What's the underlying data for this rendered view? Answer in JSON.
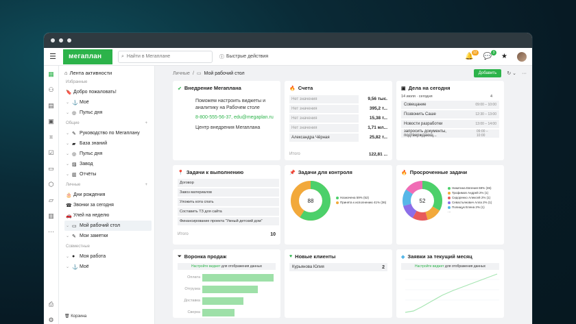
{
  "topbar": {
    "logo": "мегаплан",
    "search_placeholder": "Найти в Мегаплане",
    "quick_actions": "Быстрые действия",
    "notifications_count": "12",
    "messages_count": "3"
  },
  "sidebar": {
    "header": "Лента активности",
    "sections": {
      "favorites": "Избранные",
      "common": "Общие",
      "personal": "Личные",
      "shared": "Совместные"
    },
    "favorites": [
      "Добро пожаловать!",
      "Моё",
      "Пульс дня"
    ],
    "common": [
      "Руководство по Мегаплану",
      "База знаний",
      "Пульс дня",
      "Завод",
      "Отчёты"
    ],
    "personal": [
      "Дни рождения",
      "Звонки за сегодня",
      "Улей на неделю",
      "Мой рабочий стол",
      "Мои заметки"
    ],
    "shared": [
      "Моя работа",
      "Моё"
    ],
    "trash": "Корзина"
  },
  "breadcrumb": {
    "parent": "Личные",
    "current": "Мой рабочий стол",
    "add_button": "Добавить"
  },
  "widgets": {
    "implementation": {
      "title": "Внедрение Мегаплана",
      "text": "Поможем настроить виджеты и аналитику на Рабочем столе",
      "phone": "8-800-555-56-37, edu@megaplan.ru",
      "signature": "Центр внедрения Мегаплана"
    },
    "accounts": {
      "title": "Счета",
      "rows": [
        {
          "label": "Нет значения",
          "value": "9,56 тыс."
        },
        {
          "label": "Нет значения",
          "value": "395,2 т..."
        },
        {
          "label": "Нет значения",
          "value": "15,38 т..."
        },
        {
          "label": "Нет значения",
          "value": "1,71 мл..."
        },
        {
          "label": "Александра Чёрная",
          "value": "25,82 т..."
        }
      ],
      "total_label": "Итого",
      "total_value": "122,81 ..."
    },
    "today": {
      "title": "Дела на сегодня",
      "date": "14 июля · сегодня",
      "count": "4",
      "rows": [
        {
          "label": "Совещание",
          "time": "09:00 – 10:00"
        },
        {
          "label": "Позвонить Саше",
          "time": "12:30 – 13:00"
        },
        {
          "label": "Новости разработки",
          "time": "13:00 – 14:00"
        },
        {
          "label": "запросить документы, подтверждающ...",
          "time": "09:00 – 10:00"
        }
      ]
    },
    "tasks": {
      "title": "Задачи к выполнению",
      "rows": [
        "Договор",
        "Завоз материалов",
        "Уложить кота спать",
        "Составить ТЗ для сайта",
        "Финансирование проекта \"Умный детский дом\""
      ],
      "total_label": "Итого",
      "total_value": "10"
    },
    "control": {
      "title": "Задачи для контроля",
      "center": "88",
      "legend": [
        {
          "label": "Назначена 59% (52)",
          "color": "#4cd06a"
        },
        {
          "label": "Принята к исполнению 41% (36)",
          "color": "#f2a93b"
        }
      ]
    },
    "overdue": {
      "title": "Просроченные задачи",
      "center": "52",
      "legend": [
        {
          "label": "Никитина Евгения 69% (36)",
          "color": "#4cd06a"
        },
        {
          "label": "Трофимов Андрей 2% (1)",
          "color": "#f2a93b"
        },
        {
          "label": "Сидоренко Алексей 2% (1)",
          "color": "#e85a5a"
        },
        {
          "label": "Севастьянович Алла 2% (1)",
          "color": "#8c6ee8"
        },
        {
          "label": "Полищук Елена 2% (1)",
          "color": "#56b7e8"
        }
      ]
    },
    "funnel": {
      "title": "Воронка продаж",
      "hint_link": "Настройте виджет",
      "hint_text": "для отображения данных",
      "rows": [
        {
          "label": "Оплата",
          "level": 1.0
        },
        {
          "label": "Отгрузка",
          "level": 0.78
        },
        {
          "label": "Доставка",
          "level": 0.58
        },
        {
          "label": "Сверка",
          "level": 0.45
        }
      ]
    },
    "clients": {
      "title": "Новые клиенты",
      "rows": [
        {
          "label": "Курьянова Юлия",
          "value": "2"
        }
      ]
    },
    "requests": {
      "title": "Заявки за текущий месяц",
      "hint_link": "Настройте виджет",
      "hint_text": "для отображения данных"
    }
  }
}
